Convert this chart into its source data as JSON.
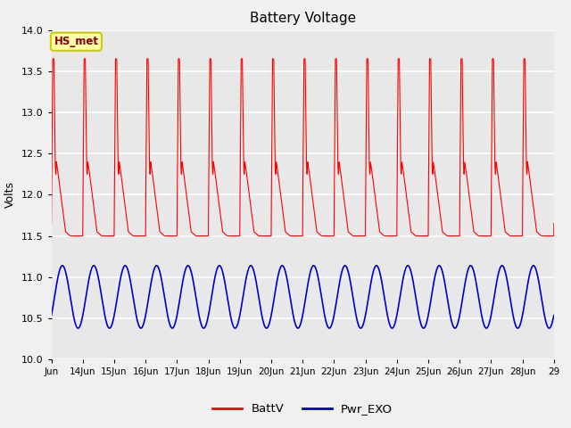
{
  "title": "Battery Voltage",
  "ylabel": "Volts",
  "ylim": [
    10.0,
    14.0
  ],
  "yticks": [
    10.0,
    10.5,
    11.0,
    11.5,
    12.0,
    12.5,
    13.0,
    13.5,
    14.0
  ],
  "xtick_labels": [
    "Jun",
    "14Jun",
    "15Jun",
    "16Jun",
    "17Jun",
    "18Jun",
    "19Jun",
    "20Jun",
    "21Jun",
    "22Jun",
    "23Jun",
    "24Jun",
    "25Jun",
    "26Jun",
    "27Jun",
    "28Jun",
    "29"
  ],
  "battv_color": "#FF0000",
  "pwr_exo_color": "#0000CC",
  "plot_bg_color": "#E8E8E8",
  "fig_bg_color": "#F0F0F0",
  "annotation_text": "HS_met",
  "annotation_bg": "#FFFFAA",
  "annotation_border": "#CCCC00",
  "legend_labels": [
    "BattV",
    "Pwr_EXO"
  ],
  "pwr_exo_base": 10.76,
  "pwr_exo_amp": 0.38,
  "period": 24.0,
  "total_hours": 384,
  "n_points": 8000
}
